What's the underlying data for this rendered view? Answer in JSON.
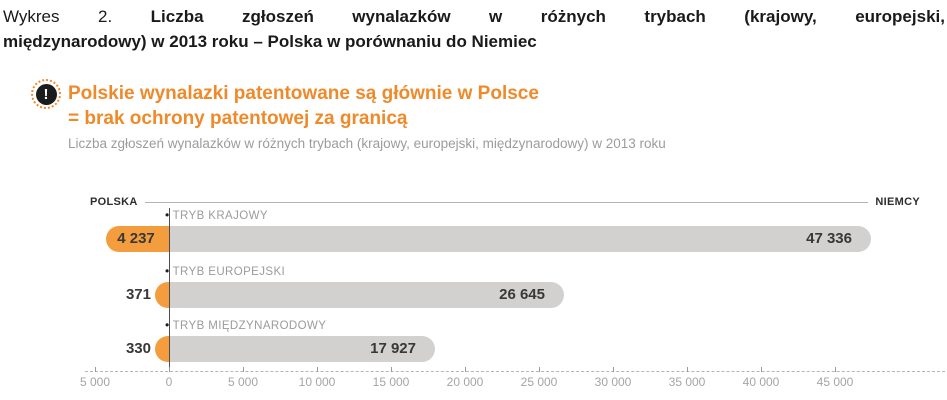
{
  "header": {
    "prefix": "Wykres 2.",
    "title_line1": "Liczba zgłoszeń wynalazków w różnych trybach (krajowy, europejski,",
    "title_line2": "międzynarodowy) w 2013 roku – Polska w porównaniu do Niemiec"
  },
  "callout": {
    "icon_glyph": "!",
    "heading_line1": "Polskie wynalazki patentowane są głównie w Polsce",
    "heading_line2": "= brak ochrony patentowej za granicą",
    "subtitle": "Liczba zgłoszeń wynalazków w różnych trybach (krajowy, europejski, międzynarodowy) w 2013 roku",
    "accent_color": "#ef8a2b"
  },
  "chart_data": {
    "type": "bar",
    "orientation": "horizontal-diverging",
    "title": "Liczba zgłoszeń wynalazków w różnych trybach (krajowy, europejski, międzynarodowy) w 2013 roku",
    "categories": [
      "TRYB KRAJOWY",
      "TRYB EUROPEJSKI",
      "TRYB MIĘDZYNARODOWY"
    ],
    "series": [
      {
        "name": "POLSKA",
        "side": "left",
        "color": "#f49d3f",
        "values": [
          4237,
          371,
          330
        ],
        "labels": [
          "4 237",
          "371",
          "330"
        ]
      },
      {
        "name": "NIEMCY",
        "side": "right",
        "color": "#d2d1d0",
        "values": [
          47336,
          26645,
          17927
        ],
        "labels": [
          "47 336",
          "26 645",
          "17 927"
        ]
      }
    ],
    "axis": {
      "range": [
        -5000,
        47800
      ],
      "ticks": [
        {
          "value": -5000,
          "label": "5 000"
        },
        {
          "value": 0,
          "label": "0"
        },
        {
          "value": 5000,
          "label": "5 000"
        },
        {
          "value": 10000,
          "label": "10 000"
        },
        {
          "value": 15000,
          "label": "15 000"
        },
        {
          "value": 20000,
          "label": "20 000"
        },
        {
          "value": 25000,
          "label": "25 000"
        },
        {
          "value": 30000,
          "label": "30 000"
        },
        {
          "value": 35000,
          "label": "35 000"
        },
        {
          "value": 40000,
          "label": "40 000"
        },
        {
          "value": 45000,
          "label": "45 000"
        }
      ]
    }
  }
}
